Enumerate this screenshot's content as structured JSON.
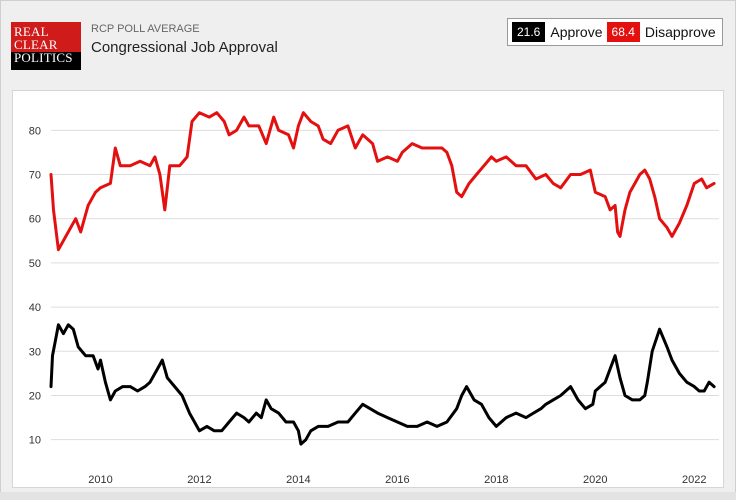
{
  "header": {
    "logo_lines": [
      "REAL",
      "CLEAR",
      "POLITICS"
    ],
    "kicker": "RCP POLL AVERAGE",
    "title": "Congressional Job Approval"
  },
  "legend": {
    "approve_value": "21.6",
    "approve_label": "Approve",
    "disapprove_value": "68.4",
    "disapprove_label": "Disapprove"
  },
  "colors": {
    "approve": "#000000",
    "disapprove": "#e41010",
    "grid": "#dddddd"
  },
  "chart_data": {
    "type": "line",
    "title": "Congressional Job Approval",
    "xlabel": "",
    "ylabel": "",
    "xlim": [
      2009.0,
      2022.5
    ],
    "ylim": [
      2,
      88
    ],
    "yticks": [
      10,
      20,
      30,
      40,
      50,
      60,
      70,
      80
    ],
    "xticks": [
      2010,
      2012,
      2014,
      2016,
      2018,
      2020,
      2022
    ],
    "grid": true,
    "legend_position": "top-right",
    "series": [
      {
        "name": "Disapprove",
        "color": "#e41010",
        "points": [
          [
            2009.0,
            70
          ],
          [
            2009.05,
            62
          ],
          [
            2009.15,
            53
          ],
          [
            2009.3,
            56
          ],
          [
            2009.5,
            60
          ],
          [
            2009.6,
            57
          ],
          [
            2009.75,
            63
          ],
          [
            2009.9,
            66
          ],
          [
            2010.0,
            67
          ],
          [
            2010.2,
            68
          ],
          [
            2010.3,
            76
          ],
          [
            2010.4,
            72
          ],
          [
            2010.6,
            72
          ],
          [
            2010.8,
            73
          ],
          [
            2011.0,
            72
          ],
          [
            2011.1,
            74
          ],
          [
            2011.2,
            70
          ],
          [
            2011.3,
            62
          ],
          [
            2011.4,
            72
          ],
          [
            2011.6,
            72
          ],
          [
            2011.75,
            74
          ],
          [
            2011.85,
            82
          ],
          [
            2012.0,
            84
          ],
          [
            2012.2,
            83
          ],
          [
            2012.35,
            84
          ],
          [
            2012.5,
            82
          ],
          [
            2012.6,
            79
          ],
          [
            2012.75,
            80
          ],
          [
            2012.9,
            83
          ],
          [
            2013.0,
            81
          ],
          [
            2013.2,
            81
          ],
          [
            2013.35,
            77
          ],
          [
            2013.5,
            83
          ],
          [
            2013.6,
            80
          ],
          [
            2013.8,
            79
          ],
          [
            2013.9,
            76
          ],
          [
            2014.0,
            81
          ],
          [
            2014.1,
            84
          ],
          [
            2014.25,
            82
          ],
          [
            2014.4,
            81
          ],
          [
            2014.5,
            78
          ],
          [
            2014.65,
            77
          ],
          [
            2014.8,
            80
          ],
          [
            2015.0,
            81
          ],
          [
            2015.15,
            76
          ],
          [
            2015.3,
            79
          ],
          [
            2015.5,
            77
          ],
          [
            2015.6,
            73
          ],
          [
            2015.8,
            74
          ],
          [
            2016.0,
            73
          ],
          [
            2016.1,
            75
          ],
          [
            2016.3,
            77
          ],
          [
            2016.5,
            76
          ],
          [
            2016.7,
            76
          ],
          [
            2016.9,
            76
          ],
          [
            2017.0,
            75
          ],
          [
            2017.1,
            72
          ],
          [
            2017.2,
            66
          ],
          [
            2017.3,
            65
          ],
          [
            2017.45,
            68
          ],
          [
            2017.6,
            70
          ],
          [
            2017.75,
            72
          ],
          [
            2017.9,
            74
          ],
          [
            2018.0,
            73
          ],
          [
            2018.2,
            74
          ],
          [
            2018.4,
            72
          ],
          [
            2018.6,
            72
          ],
          [
            2018.8,
            69
          ],
          [
            2019.0,
            70
          ],
          [
            2019.15,
            68
          ],
          [
            2019.3,
            67
          ],
          [
            2019.5,
            70
          ],
          [
            2019.7,
            70
          ],
          [
            2019.9,
            71
          ],
          [
            2020.0,
            66
          ],
          [
            2020.2,
            65
          ],
          [
            2020.3,
            62
          ],
          [
            2020.4,
            63
          ],
          [
            2020.45,
            57
          ],
          [
            2020.5,
            56
          ],
          [
            2020.6,
            62
          ],
          [
            2020.7,
            66
          ],
          [
            2020.8,
            68
          ],
          [
            2020.9,
            70
          ],
          [
            2021.0,
            71
          ],
          [
            2021.1,
            69
          ],
          [
            2021.2,
            65
          ],
          [
            2021.3,
            60
          ],
          [
            2021.45,
            58
          ],
          [
            2021.55,
            56
          ],
          [
            2021.7,
            59
          ],
          [
            2021.85,
            63
          ],
          [
            2022.0,
            68
          ],
          [
            2022.15,
            69
          ],
          [
            2022.25,
            67
          ],
          [
            2022.4,
            68
          ]
        ]
      },
      {
        "name": "Approve",
        "color": "#000000",
        "points": [
          [
            2009.0,
            22
          ],
          [
            2009.03,
            29
          ],
          [
            2009.1,
            33
          ],
          [
            2009.15,
            36
          ],
          [
            2009.25,
            34
          ],
          [
            2009.35,
            36
          ],
          [
            2009.45,
            35
          ],
          [
            2009.55,
            31
          ],
          [
            2009.7,
            29
          ],
          [
            2009.85,
            29
          ],
          [
            2009.95,
            26
          ],
          [
            2010.0,
            28
          ],
          [
            2010.1,
            23
          ],
          [
            2010.2,
            19
          ],
          [
            2010.3,
            21
          ],
          [
            2010.45,
            22
          ],
          [
            2010.6,
            22
          ],
          [
            2010.75,
            21
          ],
          [
            2010.9,
            22
          ],
          [
            2011.0,
            23
          ],
          [
            2011.15,
            26
          ],
          [
            2011.25,
            28
          ],
          [
            2011.35,
            24
          ],
          [
            2011.5,
            22
          ],
          [
            2011.65,
            20
          ],
          [
            2011.8,
            16
          ],
          [
            2011.9,
            14
          ],
          [
            2012.0,
            12
          ],
          [
            2012.15,
            13
          ],
          [
            2012.3,
            12
          ],
          [
            2012.45,
            12
          ],
          [
            2012.6,
            14
          ],
          [
            2012.75,
            16
          ],
          [
            2012.9,
            15
          ],
          [
            2013.0,
            14
          ],
          [
            2013.15,
            16
          ],
          [
            2013.25,
            15
          ],
          [
            2013.35,
            19
          ],
          [
            2013.45,
            17
          ],
          [
            2013.6,
            16
          ],
          [
            2013.75,
            14
          ],
          [
            2013.9,
            14
          ],
          [
            2014.0,
            12
          ],
          [
            2014.05,
            9
          ],
          [
            2014.15,
            10
          ],
          [
            2014.25,
            12
          ],
          [
            2014.4,
            13
          ],
          [
            2014.6,
            13
          ],
          [
            2014.8,
            14
          ],
          [
            2015.0,
            14
          ],
          [
            2015.15,
            16
          ],
          [
            2015.3,
            18
          ],
          [
            2015.45,
            17
          ],
          [
            2015.6,
            16
          ],
          [
            2015.8,
            15
          ],
          [
            2016.0,
            14
          ],
          [
            2016.2,
            13
          ],
          [
            2016.4,
            13
          ],
          [
            2016.6,
            14
          ],
          [
            2016.8,
            13
          ],
          [
            2017.0,
            14
          ],
          [
            2017.2,
            17
          ],
          [
            2017.3,
            20
          ],
          [
            2017.4,
            22
          ],
          [
            2017.55,
            19
          ],
          [
            2017.7,
            18
          ],
          [
            2017.85,
            15
          ],
          [
            2018.0,
            13
          ],
          [
            2018.2,
            15
          ],
          [
            2018.4,
            16
          ],
          [
            2018.6,
            15
          ],
          [
            2018.75,
            16
          ],
          [
            2018.9,
            17
          ],
          [
            2019.0,
            18
          ],
          [
            2019.15,
            19
          ],
          [
            2019.3,
            20
          ],
          [
            2019.5,
            22
          ],
          [
            2019.65,
            19
          ],
          [
            2019.8,
            17
          ],
          [
            2019.95,
            18
          ],
          [
            2020.0,
            21
          ],
          [
            2020.1,
            22
          ],
          [
            2020.2,
            23
          ],
          [
            2020.3,
            26
          ],
          [
            2020.4,
            29
          ],
          [
            2020.5,
            24
          ],
          [
            2020.6,
            20
          ],
          [
            2020.75,
            19
          ],
          [
            2020.9,
            19
          ],
          [
            2021.0,
            20
          ],
          [
            2021.05,
            23
          ],
          [
            2021.15,
            30
          ],
          [
            2021.3,
            35
          ],
          [
            2021.45,
            31
          ],
          [
            2021.55,
            28
          ],
          [
            2021.7,
            25
          ],
          [
            2021.85,
            23
          ],
          [
            2022.0,
            22
          ],
          [
            2022.1,
            21
          ],
          [
            2022.2,
            21
          ],
          [
            2022.3,
            23
          ],
          [
            2022.4,
            22
          ]
        ]
      }
    ]
  }
}
